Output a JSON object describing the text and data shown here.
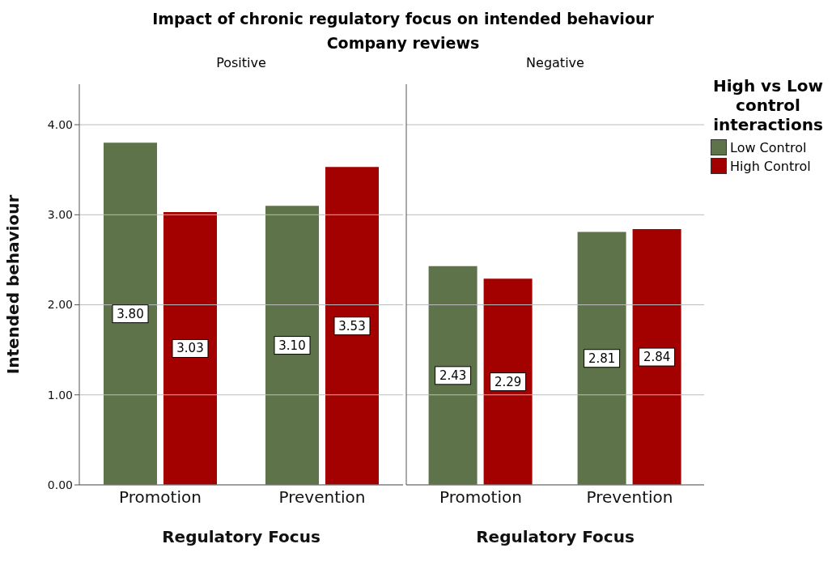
{
  "chart_data": [
    {
      "type": "bar",
      "title": "Positive",
      "annotations": [
        "Impact of chronic regulatory focus on intended behaviour",
        "Company reviews"
      ],
      "xlabel": "Regulatory Focus",
      "ylabel": "Intended behaviour",
      "categories": [
        "Promotion",
        "Prevention"
      ],
      "series": [
        {
          "color": "#5e7349",
          "values": [
            3.8,
            3.1
          ],
          "value_labels": [
            "3.80",
            "3.10"
          ]
        },
        {
          "color": "#a30000",
          "values": [
            3.03,
            3.53
          ],
          "value_labels": [
            "3.03",
            "3.53"
          ]
        }
      ],
      "ylim": [
        0,
        4.45
      ],
      "yticks": [
        {
          "value": 0,
          "label": "0.00"
        },
        {
          "value": 1,
          "label": "1.00"
        },
        {
          "value": 2,
          "label": "2.00"
        },
        {
          "value": 3,
          "label": "3.00"
        },
        {
          "value": 4,
          "label": "4.00"
        }
      ],
      "grid": "y"
    },
    {
      "type": "bar",
      "title": "Negative",
      "xlabel": "Regulatory Focus",
      "legend_title": "High vs Low control interactions",
      "legend": "right",
      "categories": [
        "Promotion",
        "Prevention"
      ],
      "series": [
        {
          "name": "Low Control",
          "color": "#5e7349",
          "values": [
            2.43,
            2.81
          ],
          "value_labels": [
            "2.43",
            "2.81"
          ]
        },
        {
          "name": "High Control",
          "color": "#a30000",
          "values": [
            2.29,
            2.84
          ],
          "value_labels": [
            "2.29",
            "2.84"
          ]
        }
      ],
      "ylim": [
        0,
        4.45
      ],
      "yticks": [
        0,
        1,
        2,
        3,
        4
      ],
      "grid": "y",
      "tick_labels": "x"
    }
  ]
}
